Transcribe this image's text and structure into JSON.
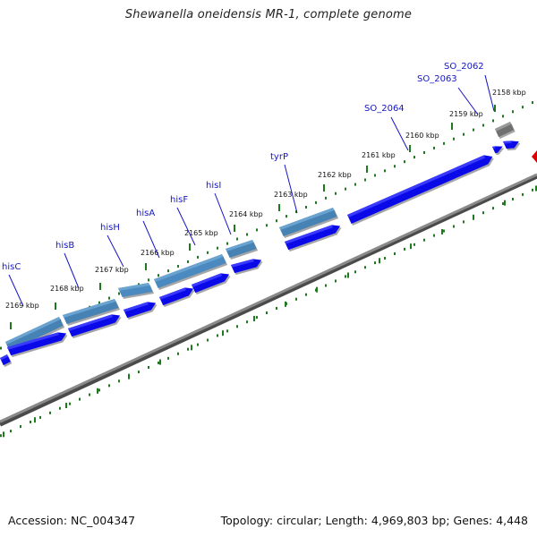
{
  "title": "Shewanella oneidensis MR-1, complete genome",
  "footer": {
    "accession": "Accession: NC_004347",
    "summary": "Topology: circular; Length: 4,969,803 bp; Genes: 4,448"
  },
  "colors": {
    "backbone": "#8a8a8a",
    "dots": "#1f7a1f",
    "forward_gene": "#0a0ae8",
    "operon_gene": "#4682b4",
    "gray_gene": "#707070",
    "marker": "#e00000",
    "label": "#1515c8"
  },
  "ticks": [
    {
      "id": "2158",
      "label": "2158 kbp"
    },
    {
      "id": "2159",
      "label": "2159 kbp"
    },
    {
      "id": "2160",
      "label": "2160 kbp"
    },
    {
      "id": "2161",
      "label": "2161 kbp"
    },
    {
      "id": "2162",
      "label": "2162 kbp"
    },
    {
      "id": "2163",
      "label": "2163 kbp"
    },
    {
      "id": "2164",
      "label": "2164 kbp"
    },
    {
      "id": "2165",
      "label": "2165 kbp"
    },
    {
      "id": "2166",
      "label": "2166 kbp"
    },
    {
      "id": "2167",
      "label": "2167 kbp"
    },
    {
      "id": "2168",
      "label": "2168 kbp"
    },
    {
      "id": "2169",
      "label": "2169 kbp"
    }
  ],
  "gene_labels": [
    {
      "id": "SO_2062",
      "text": "SO_2062"
    },
    {
      "id": "SO_2063",
      "text": "SO_2063"
    },
    {
      "id": "SO_2064",
      "text": "SO_2064"
    },
    {
      "id": "tyrP",
      "text": "tyrP"
    },
    {
      "id": "hisI",
      "text": "hisI"
    },
    {
      "id": "hisF",
      "text": "hisF"
    },
    {
      "id": "hisA",
      "text": "hisA"
    },
    {
      "id": "hisH",
      "text": "hisH"
    },
    {
      "id": "hisB",
      "text": "hisB"
    },
    {
      "id": "hisC",
      "text": "hisC"
    }
  ]
}
